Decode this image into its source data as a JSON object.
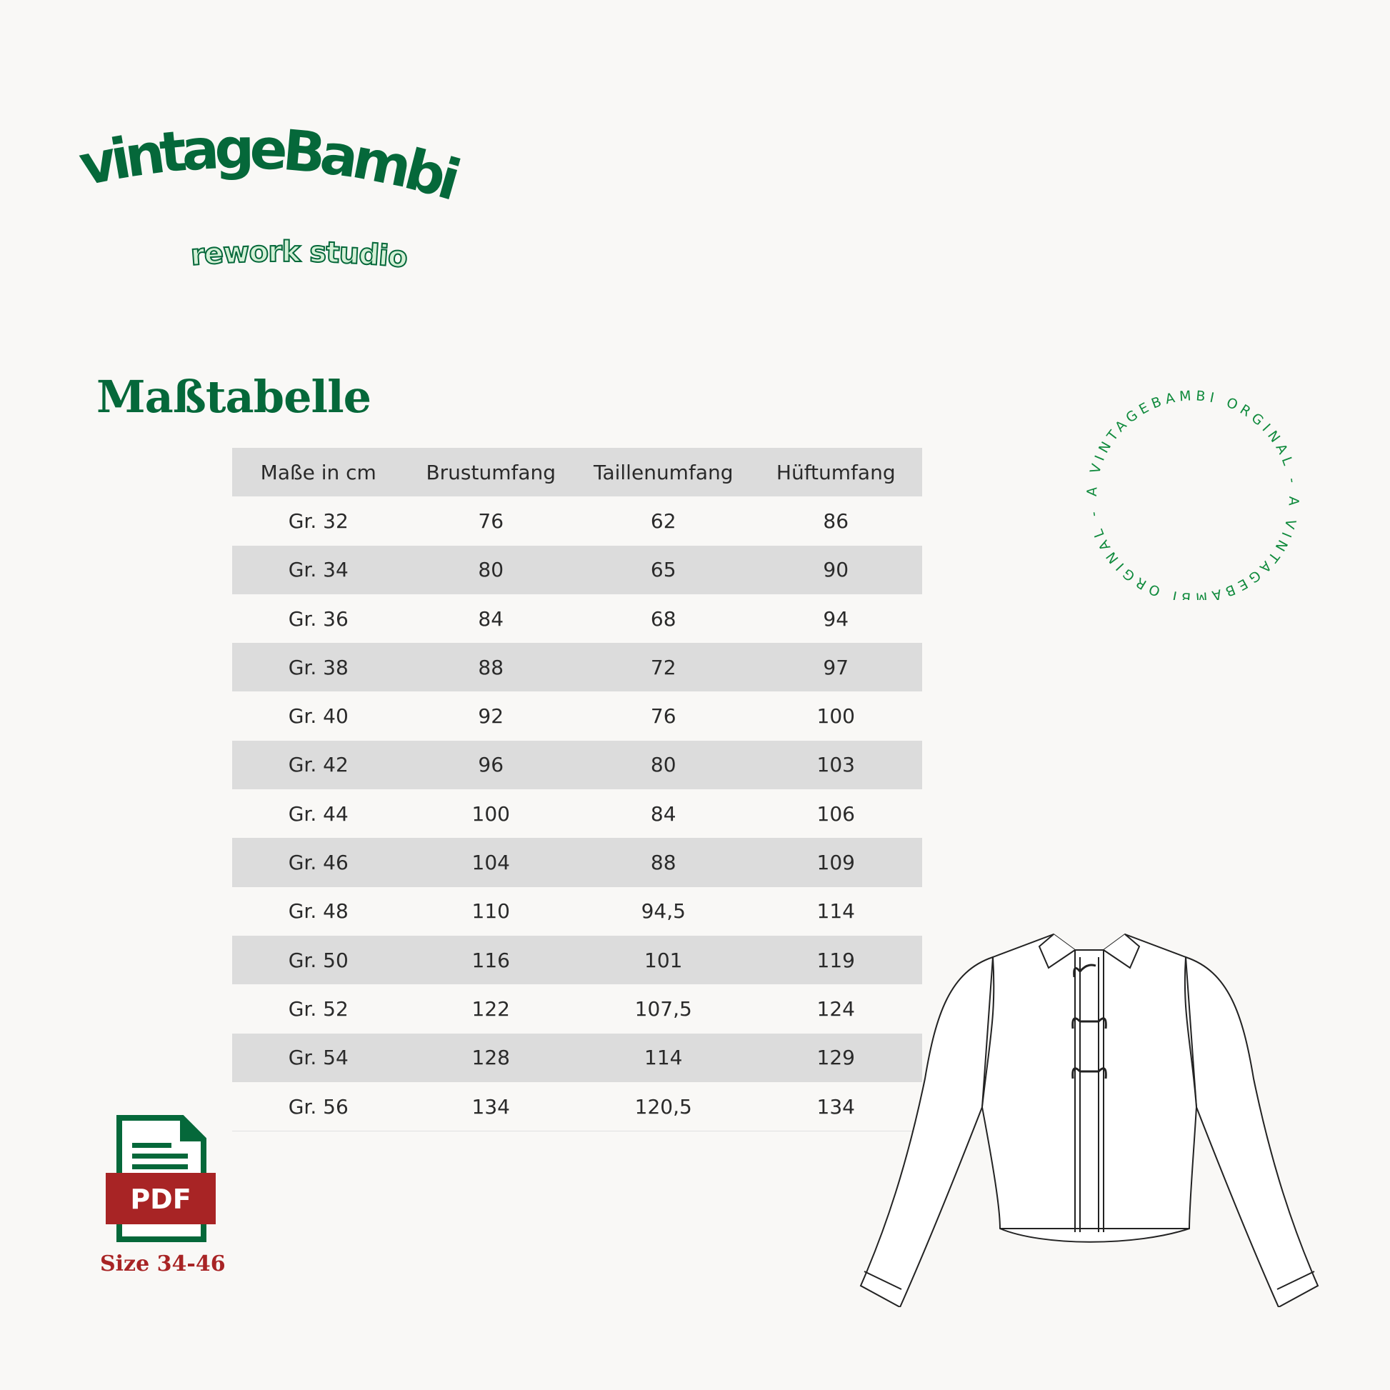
{
  "logo": {
    "brand": "vintageBambi",
    "tagline": "rework studio",
    "colors": {
      "primary": "#05683a",
      "secondary": "#d4f0d6"
    }
  },
  "title": "Maßtabelle",
  "table": {
    "headers": [
      "Maße in cm",
      "Brustumfang",
      "Taillenumfang",
      "Hüftumfang"
    ],
    "rows": [
      [
        "Gr. 32",
        "76",
        "62",
        "86"
      ],
      [
        "Gr. 34",
        "80",
        "65",
        "90"
      ],
      [
        "Gr. 36",
        "84",
        "68",
        "94"
      ],
      [
        "Gr. 38",
        "88",
        "72",
        "97"
      ],
      [
        "Gr. 40",
        "92",
        "76",
        "100"
      ],
      [
        "Gr. 42",
        "96",
        "80",
        "103"
      ],
      [
        "Gr. 44",
        "100",
        "84",
        "106"
      ],
      [
        "Gr. 46",
        "104",
        "88",
        "109"
      ],
      [
        "Gr. 48",
        "110",
        "94,5",
        "114"
      ],
      [
        "Gr. 50",
        "116",
        "101",
        "119"
      ],
      [
        "Gr. 52",
        "122",
        "107,5",
        "124"
      ],
      [
        "Gr. 54",
        "128",
        "114",
        "129"
      ],
      [
        "Gr. 56",
        "134",
        "120,5",
        "134"
      ]
    ]
  },
  "stamp": {
    "text": "A VINTAGEBAMBI ORGINAL - A VINTAGEBAMBI ORGINAL - ",
    "color": "#0f8a3c"
  },
  "pdf": {
    "label": "PDF",
    "icon": "pdf-file-icon",
    "caption": "Size 34-46",
    "colors": {
      "file": "#05683a",
      "badge": "#a82425"
    }
  },
  "illustration": {
    "icon": "jacket-illustration"
  }
}
